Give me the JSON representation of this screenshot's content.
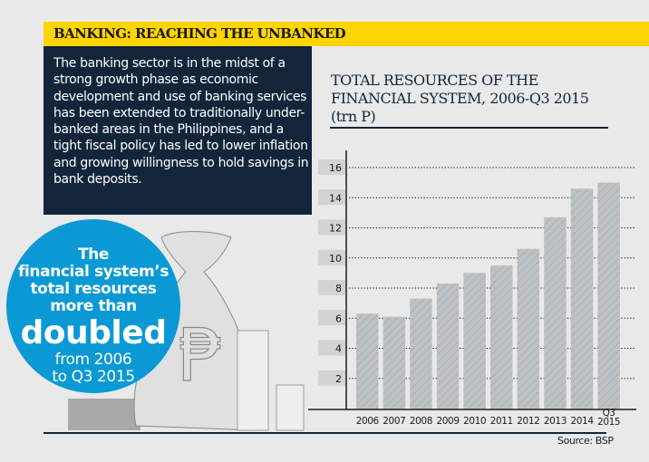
{
  "banner": {
    "title": "BANKING: REACHING THE UNBANKED"
  },
  "intro": {
    "text": "The banking sector is in the midst of a strong growth phase as economic development and use of banking services has been extended to traditionally under-banked areas in the Philippines, and a tight fiscal policy has led to lower inflation and growing willingness to hold savings in bank deposits."
  },
  "callout": {
    "line1": "The",
    "line2": "financial system’s",
    "line3": "total resources",
    "line4": "more than",
    "big": "doubled",
    "line5": "from 2006",
    "line6": "to Q3 2015"
  },
  "illustration": {
    "icon": "money-bag-peso-icon",
    "currency_symbol": "₱"
  },
  "colors": {
    "banner": "#ffd400",
    "navy": "#13253a",
    "callout": "#0a99d5",
    "bar_fill": "#c0c0c0",
    "bar_hatch": "#4aa3d8"
  },
  "source": "Source: BSP",
  "chart_data": {
    "type": "bar",
    "title_lines": [
      "TOTAL RESOURCES OF THE",
      "FINANCIAL SYSTEM, 2006-Q3 2015",
      "(trn P)"
    ],
    "title": "TOTAL RESOURCES OF THE FINANCIAL SYSTEM, 2006-Q3 2015 (trn P)",
    "xlabel": "",
    "ylabel": "trn P",
    "categories": [
      "2006",
      "2007",
      "2008",
      "2009",
      "2010",
      "2011",
      "2012",
      "2013",
      "2014",
      "Q3 2015"
    ],
    "category_lines": [
      [
        "2006"
      ],
      [
        "2007"
      ],
      [
        "2008"
      ],
      [
        "2009"
      ],
      [
        "2010"
      ],
      [
        "2011"
      ],
      [
        "2012"
      ],
      [
        "2013"
      ],
      [
        "2014"
      ],
      [
        "Q3",
        "2015"
      ]
    ],
    "values": [
      6.3,
      6.1,
      7.3,
      8.3,
      9.0,
      9.5,
      10.6,
      12.7,
      14.6,
      15.0
    ],
    "ylim": [
      0,
      16
    ],
    "yticks": [
      2,
      4,
      6,
      8,
      10,
      12,
      14,
      16
    ],
    "grid": true,
    "grid_style": "dotted",
    "legend": "none",
    "source": "BSP"
  }
}
